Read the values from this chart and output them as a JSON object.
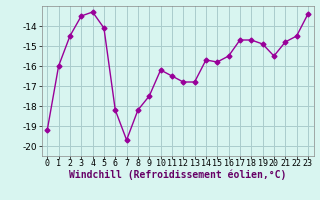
{
  "x": [
    0,
    1,
    2,
    3,
    4,
    5,
    6,
    7,
    8,
    9,
    10,
    11,
    12,
    13,
    14,
    15,
    16,
    17,
    18,
    19,
    20,
    21,
    22,
    23
  ],
  "y": [
    -19.2,
    -16.0,
    -14.5,
    -13.5,
    -13.3,
    -14.1,
    -18.2,
    -19.7,
    -18.2,
    -17.5,
    -16.2,
    -16.5,
    -16.8,
    -16.8,
    -15.7,
    -15.8,
    -15.5,
    -14.7,
    -14.7,
    -14.9,
    -15.5,
    -14.8,
    -14.5,
    -13.4
  ],
  "line_color": "#990099",
  "marker": "D",
  "markersize": 2.5,
  "linewidth": 1.0,
  "bg_color": "#d8f5f0",
  "grid_color": "#aacccc",
  "xlabel": "Windchill (Refroidissement éolien,°C)",
  "xlabel_fontsize": 7,
  "tick_fontsize": 6,
  "ytick_fontsize": 6.5,
  "ylim": [
    -20.5,
    -13.0
  ],
  "yticks": [
    -20,
    -19,
    -18,
    -17,
    -16,
    -15,
    -14
  ],
  "xlim": [
    -0.5,
    23.5
  ]
}
